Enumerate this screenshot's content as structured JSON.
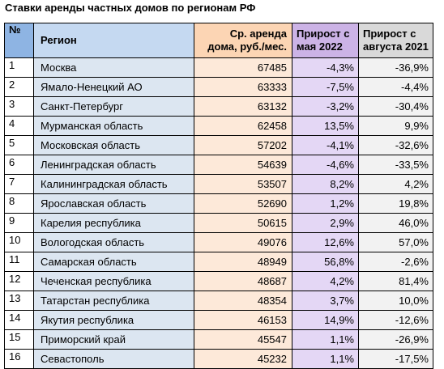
{
  "title": "Ставки аренды частных домов по регионам РФ",
  "headers": {
    "num": "№",
    "region": "Регион",
    "rent_line1": "Ср. аренда",
    "rent_line2": "дома, руб./мес.",
    "may_line1": "Прирост с",
    "may_line2": "мая 2022",
    "aug_line1": "Прирост с",
    "aug_line2": "августа 2021"
  },
  "rows": [
    {
      "num": "1",
      "region": "Москва",
      "rent": "67485",
      "may": "-4,3%",
      "aug": "-36,9%"
    },
    {
      "num": "2",
      "region": "Ямало-Ненецкий АО",
      "rent": "63333",
      "may": "-7,5%",
      "aug": "-4,4%"
    },
    {
      "num": "3",
      "region": "Санкт-Петербург",
      "rent": "63132",
      "may": "-3,2%",
      "aug": "-30,4%"
    },
    {
      "num": "4",
      "region": "Мурманская область",
      "rent": "62458",
      "may": "13,5%",
      "aug": "9,9%"
    },
    {
      "num": "5",
      "region": "Московская область",
      "rent": "57202",
      "may": "-4,1%",
      "aug": "-32,6%"
    },
    {
      "num": "6",
      "region": "Ленинградская область",
      "rent": "54639",
      "may": "-4,6%",
      "aug": "-33,5%"
    },
    {
      "num": "7",
      "region": "Калининградская область",
      "rent": "53507",
      "may": "8,2%",
      "aug": "4,2%"
    },
    {
      "num": "8",
      "region": "Ярославская область",
      "rent": "52690",
      "may": "1,2%",
      "aug": "19,8%"
    },
    {
      "num": "9",
      "region": "Карелия республика",
      "rent": "50615",
      "may": "2,9%",
      "aug": "46,0%"
    },
    {
      "num": "10",
      "region": "Вологодская область",
      "rent": "49076",
      "may": "12,6%",
      "aug": "57,0%"
    },
    {
      "num": "11",
      "region": "Самарская область",
      "rent": "48949",
      "may": "56,8%",
      "aug": "-2,6%"
    },
    {
      "num": "12",
      "region": "Чеченская республика",
      "rent": "48687",
      "may": "4,2%",
      "aug": "81,4%"
    },
    {
      "num": "13",
      "region": "Татарстан республика",
      "rent": "48354",
      "may": "3,7%",
      "aug": "10,0%"
    },
    {
      "num": "14",
      "region": "Якутия республика",
      "rent": "46153",
      "may": "14,9%",
      "aug": "-12,6%"
    },
    {
      "num": "15",
      "region": "Приморский край",
      "rent": "45547",
      "may": "1,1%",
      "aug": "-26,9%"
    },
    {
      "num": "16",
      "region": "Севастополь",
      "rent": "45232",
      "may": "1,1%",
      "aug": "-17,5%"
    }
  ]
}
